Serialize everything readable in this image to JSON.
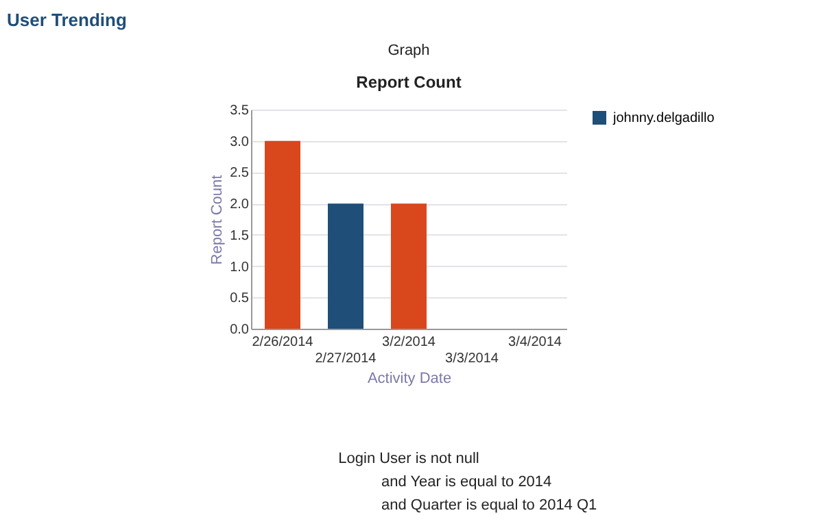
{
  "chart_data": {
    "type": "bar",
    "title": "Report Count",
    "xlabel": "Activity Date",
    "ylabel": "Report Count",
    "categories": [
      "2/26/2014",
      "2/27/2014",
      "3/2/2014",
      "3/3/2014",
      "3/4/2014"
    ],
    "series": [
      {
        "name": "johnny.delgadillo",
        "color": "#1f4e79",
        "values": [
          null,
          2,
          null,
          null,
          null
        ]
      },
      {
        "color": "#d9471c",
        "values": [
          3,
          null,
          2,
          null,
          null
        ]
      }
    ],
    "ylim": [
      0,
      3.5
    ],
    "yticks": [
      {
        "value": 0,
        "label": "0.0"
      },
      {
        "value": 0.5,
        "label": "0.5"
      },
      {
        "value": 1,
        "label": "1.0"
      },
      {
        "value": 1.5,
        "label": "1.5"
      },
      {
        "value": 2,
        "label": "2.0"
      },
      {
        "value": 2.5,
        "label": "2.5"
      },
      {
        "value": 3,
        "label": "3.0"
      },
      {
        "value": 3.5,
        "label": "3.5"
      }
    ],
    "grid": "y",
    "legend": "right",
    "annotations": [
      "User Trending",
      "Graph",
      "Login User is not null",
      "and Year is equal to 2014",
      "and Quarter is equal to 2014 Q1"
    ]
  }
}
